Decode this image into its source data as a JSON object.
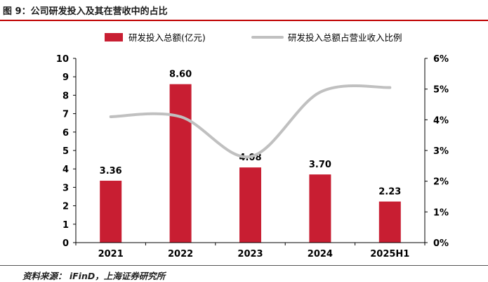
{
  "figure_title": "图 9：公司研发投入及其在营收中的占比",
  "source_note": "资料来源： iFinD，上海证券研究所",
  "colors": {
    "bar": "#c81e32",
    "line": "#c0c0c0",
    "accent": "#c00000"
  },
  "chart_data": {
    "type": "bar",
    "categories": [
      "2021",
      "2022",
      "2023",
      "2024",
      "2025H1"
    ],
    "series": [
      {
        "name": "研发投入总额(亿元)",
        "type": "bar",
        "axis": "left",
        "values": [
          3.36,
          8.6,
          4.08,
          3.7,
          2.23
        ],
        "value_labels": [
          "3.36",
          "8.60",
          "4.08",
          "3.70",
          "2.23"
        ]
      },
      {
        "name": "研发投入总额占营业收入比例",
        "type": "line",
        "axis": "right",
        "values": [
          4.1,
          4.1,
          2.8,
          4.9,
          5.05
        ]
      }
    ],
    "y_left": {
      "min": 0,
      "max": 10,
      "step": 1,
      "tick_labels": [
        "0",
        "1",
        "2",
        "3",
        "4",
        "5",
        "6",
        "7",
        "8",
        "9",
        "10"
      ]
    },
    "y_right": {
      "min": 0,
      "max": 6,
      "step": 1,
      "unit": "%",
      "tick_labels": [
        "0%",
        "1%",
        "2%",
        "3%",
        "4%",
        "5%",
        "6%"
      ]
    },
    "legend_position": "top",
    "grid": false
  }
}
